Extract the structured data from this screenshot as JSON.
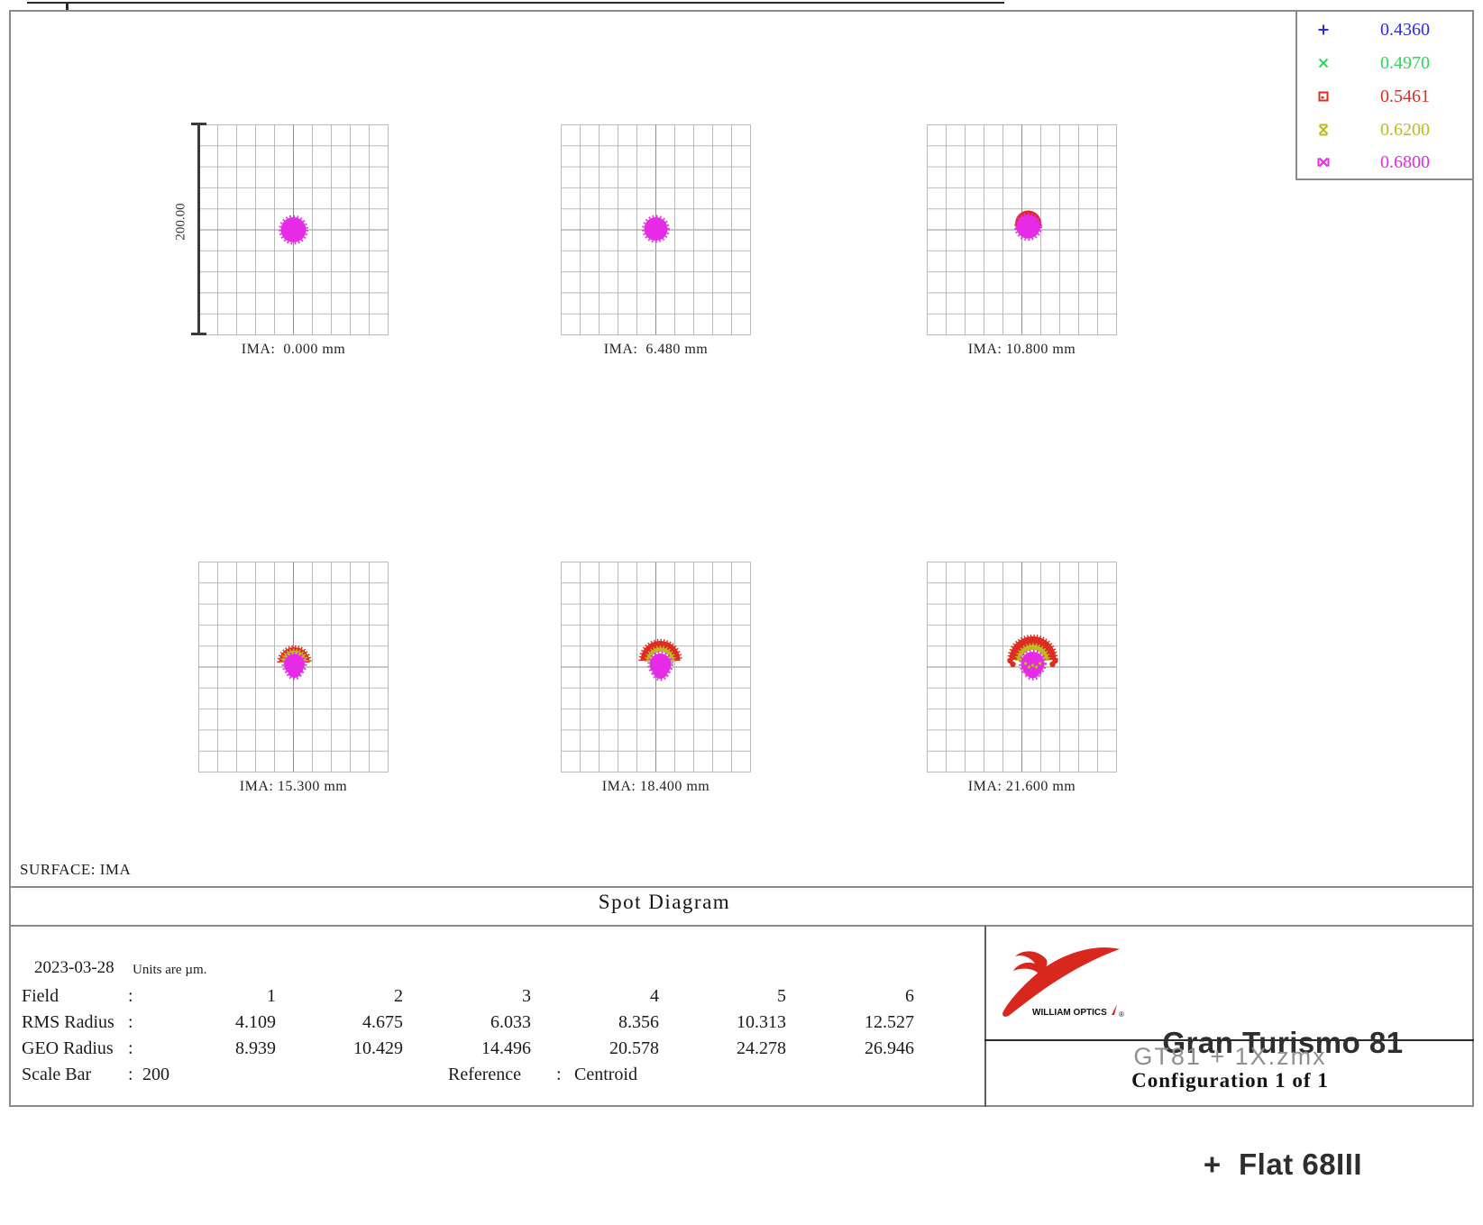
{
  "legend": {
    "entries": [
      {
        "wavelength": "0.4360",
        "color": "#2a2af0",
        "symbol": "plus"
      },
      {
        "wavelength": "0.4970",
        "color": "#2ad955",
        "symbol": "x"
      },
      {
        "wavelength": "0.5461",
        "color": "#dd2d22",
        "symbol": "square-dot"
      },
      {
        "wavelength": "0.6200",
        "color": "#bcbc1e",
        "symbol": "x-bars"
      },
      {
        "wavelength": "0.6800",
        "color": "#e62ae6",
        "symbol": "x-box"
      }
    ]
  },
  "scale_bar": {
    "axis_label": "200.00"
  },
  "surface_label": "SURFACE: IMA",
  "title": "Spot Diagram",
  "panels": [
    {
      "ima_label": "IMA:  0.000 mm"
    },
    {
      "ima_label": "IMA:  6.480 mm"
    },
    {
      "ima_label": "IMA: 10.800 mm"
    },
    {
      "ima_label": "IMA: 15.300 mm"
    },
    {
      "ima_label": "IMA: 18.400 mm"
    },
    {
      "ima_label": "IMA: 21.600 mm"
    }
  ],
  "table": {
    "date": "2023-03-28",
    "units_note": "Units are µm.",
    "field_label": "Field",
    "rms_label": "RMS Radius",
    "geo_label": "GEO Radius",
    "scale_label": "Scale Bar",
    "colon": ":",
    "field_values": [
      "1",
      "2",
      "3",
      "4",
      "5",
      "6"
    ],
    "rms_values": [
      "4.109",
      "4.675",
      "6.033",
      "8.356",
      "10.313",
      "12.527"
    ],
    "geo_values": [
      "8.939",
      "10.429",
      "14.496",
      "20.578",
      "24.278",
      "26.946"
    ],
    "scale_value": "200",
    "reference_label": "Reference",
    "reference_value": "Centroid"
  },
  "footer_right": {
    "logo_text": "WILLIAM OPTICS",
    "product_line1": "Gran Turismo 81",
    "product_line2": "+  Flat 68III",
    "file_name": "GT81 + 1X.zmx",
    "configuration": "Configuration 1 of 1"
  },
  "chart_data": {
    "type": "scatter",
    "title": "Spot Diagram",
    "surface": "IMA",
    "date": "2023-03-28",
    "units": "µm",
    "reference": "Centroid",
    "scale_bar_um": 200,
    "grid": {
      "rows": 10,
      "cols": 10,
      "grid_on": true
    },
    "legend_position": "top-right",
    "wavelengths_um": [
      0.436,
      0.497,
      0.5461,
      0.62,
      0.68
    ],
    "wavelength_colors": [
      "#2a2af0",
      "#2ad955",
      "#dd2d22",
      "#bcbc1e",
      "#e62ae6"
    ],
    "fields": [
      {
        "field": 1,
        "ima_mm": 0.0,
        "rms_radius_um": 4.109,
        "geo_radius_um": 8.939
      },
      {
        "field": 2,
        "ima_mm": 6.48,
        "rms_radius_um": 4.675,
        "geo_radius_um": 10.429
      },
      {
        "field": 3,
        "ima_mm": 10.8,
        "rms_radius_um": 6.033,
        "geo_radius_um": 14.496
      },
      {
        "field": 4,
        "ima_mm": 15.3,
        "rms_radius_um": 8.356,
        "geo_radius_um": 20.578
      },
      {
        "field": 5,
        "ima_mm": 18.4,
        "rms_radius_um": 10.313,
        "geo_radius_um": 24.278
      },
      {
        "field": 6,
        "ima_mm": 21.6,
        "rms_radius_um": 12.527,
        "geo_radius_um": 26.946
      }
    ]
  }
}
